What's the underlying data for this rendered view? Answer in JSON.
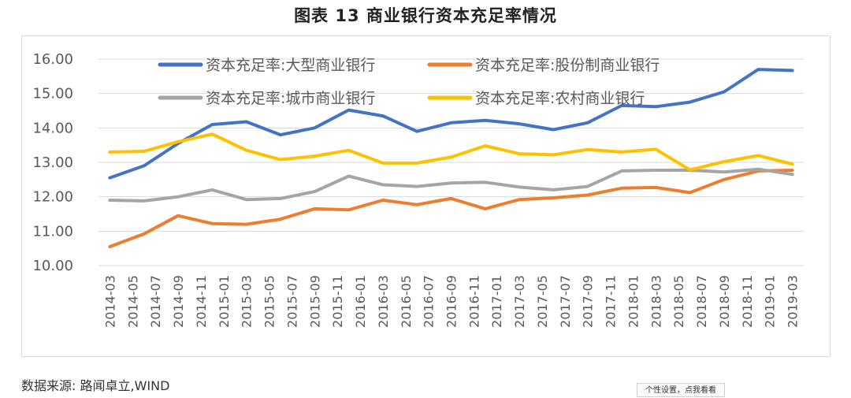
{
  "title": "图表 13 商业银行资本充足率情况",
  "source": "数据来源: 路闻卓立,WIND",
  "settings_button": "个性设置，点我看看",
  "chart_data": {
    "type": "line",
    "title": "图表 13 商业银行资本充足率情况",
    "xlabel": "",
    "ylabel": "",
    "ylim": [
      10.0,
      16.0
    ],
    "yticks": [
      "10.00",
      "11.00",
      "12.00",
      "13.00",
      "14.00",
      "15.00",
      "16.00"
    ],
    "grid": true,
    "legend_position": "top",
    "categories": [
      "2014-03",
      "2014-05",
      "2014-07",
      "2014-09",
      "2014-11",
      "2015-01",
      "2015-03",
      "2015-05",
      "2015-07",
      "2015-09",
      "2015-11",
      "2016-01",
      "2016-03",
      "2016-05",
      "2016-07",
      "2016-09",
      "2016-11",
      "2017-01",
      "2017-03",
      "2017-05",
      "2017-07",
      "2017-09",
      "2017-11",
      "2018-01",
      "2018-03",
      "2018-05",
      "2018-07",
      "2018-09",
      "2018-11",
      "2019-01",
      "2019-03"
    ],
    "x": [
      "2014-03",
      "2014-06",
      "2014-09",
      "2014-12",
      "2015-03",
      "2015-06",
      "2015-09",
      "2015-12",
      "2016-03",
      "2016-06",
      "2016-09",
      "2016-12",
      "2017-03",
      "2017-06",
      "2017-09",
      "2017-12",
      "2018-03",
      "2018-06",
      "2018-09",
      "2018-12",
      "2019-03"
    ],
    "series": [
      {
        "name": "资本充足率:大型商业银行",
        "color": "#4472C4",
        "values": [
          12.55,
          12.9,
          13.55,
          14.1,
          14.18,
          13.8,
          14.0,
          14.52,
          14.35,
          13.9,
          14.15,
          14.22,
          14.12,
          13.95,
          14.15,
          14.65,
          14.62,
          14.75,
          15.05,
          15.7,
          15.67
        ]
      },
      {
        "name": "资本充足率:股份制商业银行",
        "color": "#ED7D31",
        "values": [
          10.55,
          10.92,
          11.45,
          11.22,
          11.2,
          11.35,
          11.65,
          11.62,
          11.9,
          11.77,
          11.95,
          11.65,
          11.92,
          11.97,
          12.05,
          12.25,
          12.27,
          12.12,
          12.5,
          12.75,
          12.77
        ]
      },
      {
        "name": "资本充足率:城市商业银行",
        "color": "#A5A5A5",
        "values": [
          11.9,
          11.88,
          12.0,
          12.2,
          11.92,
          11.95,
          12.15,
          12.6,
          12.35,
          12.3,
          12.4,
          12.42,
          12.28,
          12.2,
          12.3,
          12.75,
          12.77,
          12.77,
          12.72,
          12.8,
          12.65
        ]
      },
      {
        "name": "资本充足率:农村商业银行",
        "color": "#FFC000",
        "values": [
          13.3,
          13.32,
          13.6,
          13.82,
          13.35,
          13.08,
          13.18,
          13.35,
          12.98,
          12.98,
          13.15,
          13.48,
          13.25,
          13.22,
          13.37,
          13.3,
          13.38,
          12.78,
          13.02,
          13.2,
          12.95
        ]
      }
    ]
  }
}
